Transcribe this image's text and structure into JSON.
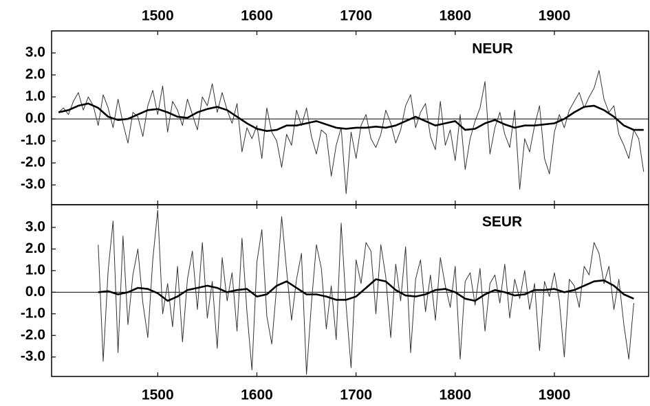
{
  "chart_data": [
    {
      "type": "line",
      "title": "NEUR",
      "xlabels": "top",
      "xlim": [
        1393,
        1995
      ],
      "xticks": [
        1500,
        1600,
        1700,
        1800,
        1900
      ],
      "ylim": [
        -3.9,
        4.0
      ],
      "yticks": [
        {
          "value": 3,
          "label": "3.0"
        },
        {
          "value": 2,
          "label": "2.0"
        },
        {
          "value": 1,
          "label": "1.0"
        },
        {
          "value": 0,
          "label": "0.0"
        },
        {
          "value": -1,
          "label": "-1.0"
        },
        {
          "value": -2,
          "label": "-2.0"
        },
        {
          "value": -3,
          "label": "-3.0"
        }
      ],
      "series": [
        {
          "color": "#333333",
          "linewidth": 1,
          "x": [
            1400,
            1405,
            1410,
            1415,
            1420,
            1425,
            1430,
            1435,
            1440,
            1445,
            1450,
            1455,
            1460,
            1465,
            1470,
            1475,
            1480,
            1485,
            1490,
            1495,
            1500,
            1505,
            1510,
            1515,
            1520,
            1525,
            1530,
            1535,
            1540,
            1545,
            1550,
            1555,
            1560,
            1565,
            1570,
            1575,
            1580,
            1585,
            1590,
            1595,
            1600,
            1605,
            1610,
            1615,
            1620,
            1625,
            1630,
            1635,
            1640,
            1645,
            1650,
            1655,
            1660,
            1665,
            1670,
            1675,
            1680,
            1685,
            1690,
            1695,
            1700,
            1705,
            1710,
            1715,
            1720,
            1725,
            1730,
            1735,
            1740,
            1745,
            1750,
            1755,
            1760,
            1765,
            1770,
            1775,
            1780,
            1785,
            1790,
            1795,
            1800,
            1805,
            1810,
            1815,
            1820,
            1825,
            1830,
            1835,
            1840,
            1845,
            1850,
            1855,
            1860,
            1865,
            1870,
            1875,
            1880,
            1885,
            1890,
            1895,
            1900,
            1905,
            1910,
            1915,
            1920,
            1925,
            1930,
            1935,
            1940,
            1945,
            1950,
            1955,
            1960,
            1965,
            1970,
            1975,
            1980,
            1985,
            1990
          ],
          "values": [
            0.3,
            0.5,
            0.2,
            0.8,
            1.2,
            0.4,
            1.0,
            0.6,
            -0.3,
            1.1,
            0.5,
            -0.4,
            0.9,
            -0.2,
            -1.1,
            0.3,
            0.1,
            -0.8,
            0.6,
            1.3,
            0.2,
            1.5,
            -0.6,
            0.8,
            0.4,
            -0.3,
            0.9,
            0.2,
            -0.5,
            1.0,
            0.6,
            1.6,
            0.3,
            1.2,
            0.4,
            -0.2,
            0.7,
            -1.5,
            -0.4,
            -0.9,
            -0.3,
            -1.8,
            0.5,
            -0.6,
            -1.0,
            -2.2,
            -0.7,
            -1.2,
            0.4,
            -0.3,
            0.5,
            -0.8,
            -1.6,
            -0.5,
            -0.7,
            -2.6,
            -1.2,
            -0.4,
            -3.4,
            -0.6,
            -1.8,
            -0.3,
            0.2,
            -0.9,
            -1.3,
            -0.7,
            0.4,
            -0.2,
            -1.1,
            -0.5,
            0.6,
            1.1,
            -0.4,
            0.3,
            0.7,
            -0.8,
            -1.4,
            0.8,
            -1.2,
            -0.5,
            -1.9,
            0.2,
            -2.3,
            -0.9,
            -0.1,
            0.5,
            1.7,
            -1.6,
            -0.4,
            0.3,
            -0.7,
            -1.3,
            0.4,
            -3.2,
            -0.9,
            -1.5,
            -0.3,
            0.6,
            -1.8,
            -2.5,
            -0.6,
            0.2,
            -0.4,
            0.4,
            0.8,
            1.2,
            0.5,
            1.0,
            1.4,
            2.2,
            0.9,
            0.3,
            0.6,
            -0.7,
            -1.2,
            -1.8,
            -0.5,
            -0.9,
            -2.4
          ]
        },
        {
          "color": "#000000",
          "linewidth": 2.6,
          "x": [
            1400,
            1410,
            1420,
            1430,
            1440,
            1450,
            1460,
            1470,
            1480,
            1490,
            1500,
            1510,
            1520,
            1530,
            1540,
            1550,
            1560,
            1570,
            1580,
            1590,
            1600,
            1610,
            1620,
            1630,
            1640,
            1650,
            1660,
            1670,
            1680,
            1690,
            1700,
            1710,
            1720,
            1730,
            1740,
            1750,
            1760,
            1770,
            1780,
            1790,
            1800,
            1810,
            1820,
            1830,
            1840,
            1850,
            1860,
            1870,
            1880,
            1890,
            1900,
            1910,
            1920,
            1930,
            1940,
            1950,
            1960,
            1970,
            1980,
            1990
          ],
          "values": [
            0.3,
            0.4,
            0.6,
            0.7,
            0.5,
            0.1,
            -0.05,
            0.0,
            0.2,
            0.4,
            0.45,
            0.3,
            0.1,
            0.05,
            0.3,
            0.45,
            0.55,
            0.4,
            0.1,
            -0.2,
            -0.45,
            -0.55,
            -0.5,
            -0.3,
            -0.3,
            -0.2,
            -0.1,
            -0.25,
            -0.4,
            -0.45,
            -0.4,
            -0.4,
            -0.35,
            -0.4,
            -0.3,
            -0.1,
            0.1,
            -0.1,
            -0.3,
            -0.2,
            -0.1,
            -0.5,
            -0.45,
            -0.2,
            -0.05,
            -0.25,
            -0.4,
            -0.3,
            -0.3,
            -0.25,
            -0.2,
            0.0,
            0.3,
            0.55,
            0.6,
            0.4,
            0.1,
            -0.3,
            -0.5,
            -0.5
          ]
        }
      ]
    },
    {
      "type": "line",
      "title": "SEUR",
      "xlabels": "bottom",
      "xlim": [
        1393,
        1995
      ],
      "xticks": [
        1500,
        1600,
        1700,
        1800,
        1900
      ],
      "ylim": [
        -3.9,
        4.05
      ],
      "yticks": [
        {
          "value": 3,
          "label": "3.0"
        },
        {
          "value": 2,
          "label": "2.0"
        },
        {
          "value": 1,
          "label": "1.0"
        },
        {
          "value": 0,
          "label": "0.0"
        },
        {
          "value": -1,
          "label": "-1.0"
        },
        {
          "value": -2,
          "label": "-2.0"
        },
        {
          "value": -3,
          "label": "-3.0"
        }
      ],
      "series": [
        {
          "color": "#333333",
          "linewidth": 1,
          "x": [
            1440,
            1445,
            1450,
            1455,
            1460,
            1465,
            1470,
            1475,
            1480,
            1485,
            1490,
            1495,
            1500,
            1505,
            1510,
            1515,
            1520,
            1525,
            1530,
            1535,
            1540,
            1545,
            1550,
            1555,
            1560,
            1565,
            1570,
            1575,
            1580,
            1585,
            1590,
            1595,
            1600,
            1605,
            1610,
            1615,
            1620,
            1625,
            1630,
            1635,
            1640,
            1645,
            1650,
            1655,
            1660,
            1665,
            1670,
            1675,
            1680,
            1685,
            1690,
            1695,
            1700,
            1705,
            1710,
            1715,
            1720,
            1725,
            1730,
            1735,
            1740,
            1745,
            1750,
            1755,
            1760,
            1765,
            1770,
            1775,
            1780,
            1785,
            1790,
            1795,
            1800,
            1805,
            1810,
            1815,
            1820,
            1825,
            1830,
            1835,
            1840,
            1845,
            1850,
            1855,
            1860,
            1865,
            1870,
            1875,
            1880,
            1885,
            1890,
            1895,
            1900,
            1905,
            1910,
            1915,
            1920,
            1925,
            1930,
            1935,
            1940,
            1945,
            1950,
            1955,
            1960,
            1965,
            1970,
            1975,
            1980
          ],
          "values": [
            2.2,
            -3.2,
            1.0,
            3.3,
            -2.8,
            2.6,
            -1.5,
            0.8,
            2.0,
            -0.5,
            -2.1,
            1.5,
            3.8,
            -1.0,
            0.4,
            -1.6,
            1.2,
            -2.3,
            0.6,
            1.9,
            -0.8,
            2.3,
            -1.2,
            0.5,
            -2.6,
            1.6,
            -0.4,
            0.9,
            -1.8,
            2.5,
            -0.9,
            -3.6,
            1.4,
            2.9,
            -1.1,
            -2.4,
            0.3,
            3.5,
            1.0,
            -1.3,
            0.6,
            1.8,
            -3.8,
            -0.5,
            2.2,
            1.1,
            -1.7,
            0.3,
            -2.2,
            3.2,
            -0.6,
            -3.5,
            1.5,
            0.4,
            2.3,
            1.9,
            -1.0,
            2.2,
            0.7,
            -2.1,
            1.3,
            -0.4,
            2.1,
            -2.8,
            0.6,
            1.5,
            -0.9,
            0.8,
            -1.3,
            1.6,
            0.3,
            -0.7,
            1.2,
            -3.1,
            0.5,
            0.9,
            -0.6,
            1.1,
            -1.8,
            0.4,
            0.8,
            -0.5,
            1.3,
            -1.2,
            0.6,
            -0.3,
            1.0,
            -0.8,
            0.4,
            -2.7,
            0.5,
            -0.2,
            0.9,
            -0.4,
            -3.0,
            0.6,
            0.3,
            -0.7,
            1.2,
            0.8,
            2.3,
            1.8,
            0.4,
            1.2,
            -0.8,
            0.6,
            -1.5,
            -3.1,
            -0.5
          ]
        },
        {
          "color": "#000000",
          "linewidth": 2.6,
          "x": [
            1440,
            1450,
            1460,
            1470,
            1480,
            1490,
            1500,
            1510,
            1520,
            1530,
            1540,
            1550,
            1560,
            1570,
            1580,
            1590,
            1600,
            1610,
            1620,
            1630,
            1640,
            1650,
            1660,
            1670,
            1680,
            1690,
            1700,
            1710,
            1720,
            1730,
            1740,
            1750,
            1760,
            1770,
            1780,
            1790,
            1800,
            1810,
            1820,
            1830,
            1840,
            1850,
            1860,
            1870,
            1880,
            1890,
            1900,
            1910,
            1920,
            1930,
            1940,
            1950,
            1960,
            1970,
            1980
          ],
          "values": [
            0.0,
            0.05,
            -0.1,
            0.0,
            0.2,
            0.15,
            -0.05,
            -0.4,
            -0.2,
            0.1,
            0.2,
            0.3,
            0.2,
            0.0,
            0.1,
            0.15,
            -0.2,
            -0.1,
            0.3,
            0.5,
            0.2,
            -0.1,
            -0.1,
            -0.2,
            -0.35,
            -0.35,
            -0.2,
            0.2,
            0.6,
            0.5,
            0.1,
            -0.15,
            -0.2,
            -0.1,
            0.1,
            0.15,
            0.0,
            -0.3,
            -0.4,
            -0.1,
            0.1,
            0.0,
            -0.15,
            -0.1,
            0.1,
            0.1,
            0.15,
            0.0,
            0.1,
            0.3,
            0.5,
            0.55,
            0.3,
            -0.1,
            -0.3
          ]
        }
      ]
    }
  ]
}
